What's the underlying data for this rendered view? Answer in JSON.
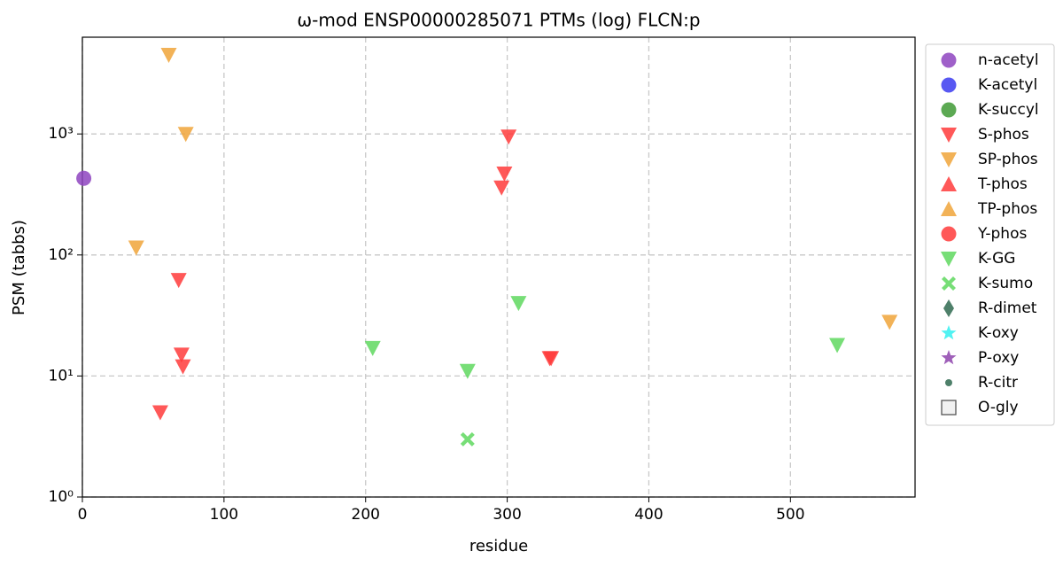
{
  "chart_data": {
    "type": "scatter",
    "title": "ω-mod ENSP00000285071 PTMs (log) FLCN:p",
    "x_label": "residue",
    "y_label": "PSM (tabbs)",
    "xlim": [
      0,
      588
    ],
    "ylim": [
      1,
      6300
    ],
    "ylog": true,
    "grid": true,
    "xticks": [
      0,
      100,
      200,
      300,
      400,
      500
    ],
    "yticks": [
      {
        "value": 1,
        "label": "10⁰"
      },
      {
        "value": 10,
        "label": "10¹"
      },
      {
        "value": 100,
        "label": "10²"
      },
      {
        "value": 1000,
        "label": "10³"
      }
    ],
    "legend": "outside-right",
    "series": [
      {
        "name": "n-acetyl",
        "color": "#8e44c0",
        "marker": "circle",
        "x": [
          1
        ],
        "values": [
          430
        ]
      },
      {
        "name": "K-acetyl",
        "color": "#3b3bf0",
        "marker": "circle",
        "x": [],
        "values": []
      },
      {
        "name": "K-succyl",
        "color": "#3f9a35",
        "marker": "circle",
        "x": [],
        "values": []
      },
      {
        "name": "S-phos",
        "color": "#ff3b3b",
        "marker": "triangle-down",
        "x": [
          55,
          68,
          70,
          71,
          296,
          298,
          301,
          330,
          331
        ],
        "values": [
          5,
          62,
          15,
          12,
          360,
          470,
          950,
          14,
          14
        ]
      },
      {
        "name": "SP-phos",
        "color": "#f0a43a",
        "marker": "triangle-down",
        "x": [
          61,
          73,
          38,
          570
        ],
        "values": [
          4500,
          1000,
          115,
          28
        ]
      },
      {
        "name": "T-phos",
        "color": "#ff3b3b",
        "marker": "triangle-up",
        "x": [],
        "values": []
      },
      {
        "name": "TP-phos",
        "color": "#f0a43a",
        "marker": "triangle-up",
        "x": [],
        "values": []
      },
      {
        "name": "Y-phos",
        "color": "#ff3b3b",
        "marker": "circle",
        "x": [],
        "values": []
      },
      {
        "name": "K-GG",
        "color": "#5fd85f",
        "marker": "triangle-down",
        "x": [
          205,
          272,
          308,
          533
        ],
        "values": [
          17,
          11,
          40,
          18
        ]
      },
      {
        "name": "K-sumo",
        "color": "#5fd85f",
        "marker": "x",
        "x": [
          272
        ],
        "values": [
          3
        ]
      },
      {
        "name": "R-dimet",
        "color": "#2f6a50",
        "marker": "diamond",
        "x": [],
        "values": []
      },
      {
        "name": "K-oxy",
        "color": "#33f0f0",
        "marker": "star",
        "x": [],
        "values": []
      },
      {
        "name": "P-oxy",
        "color": "#8e44ad",
        "marker": "star",
        "x": [],
        "values": []
      },
      {
        "name": "R-citr",
        "color": "#2f6a50",
        "marker": "dot",
        "x": [],
        "values": []
      },
      {
        "name": "O-gly",
        "color": "#eeeeee",
        "marker": "square",
        "x": [],
        "values": []
      }
    ]
  }
}
